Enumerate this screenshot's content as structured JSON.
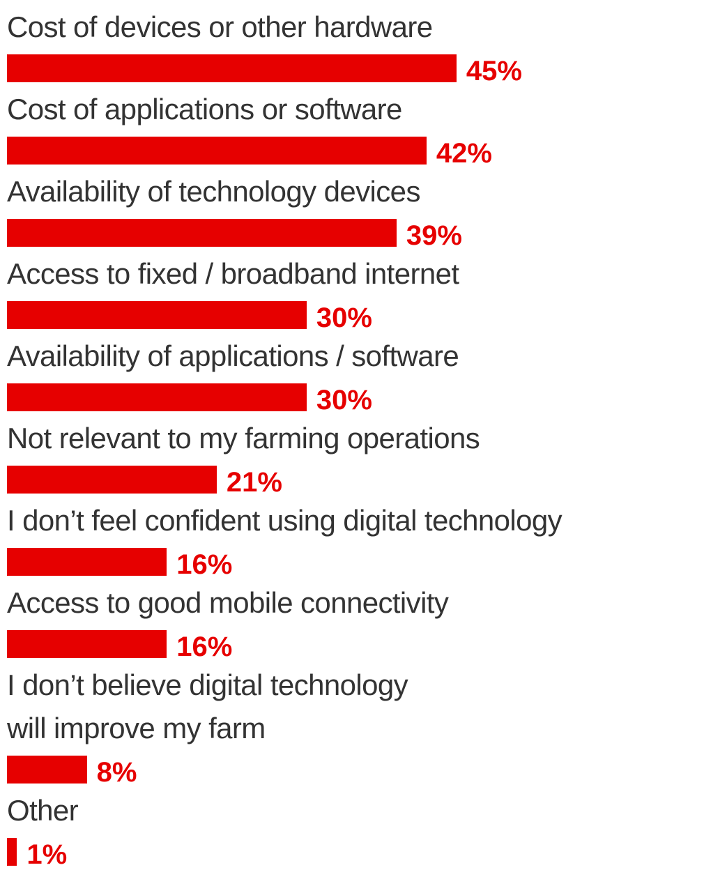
{
  "chart_data": {
    "type": "bar",
    "orientation": "horizontal",
    "color": "#e60000",
    "categories": [
      "Cost of devices or other hardware",
      "Cost of applications or software",
      "Availability of technology devices",
      "Access to fixed / broadband internet",
      "Availability of applications / software",
      "Not relevant to my farming operations",
      "I don’t feel confident using digital technology",
      "Access to good mobile connectivity",
      "I don’t believe digital technology\nwill improve my farm",
      "Other"
    ],
    "values": [
      45,
      42,
      39,
      30,
      30,
      21,
      16,
      16,
      8,
      1
    ],
    "value_labels": [
      "45%",
      "42%",
      "39%",
      "30%",
      "30%",
      "21%",
      "16%",
      "16%",
      "8%",
      "1%"
    ]
  }
}
